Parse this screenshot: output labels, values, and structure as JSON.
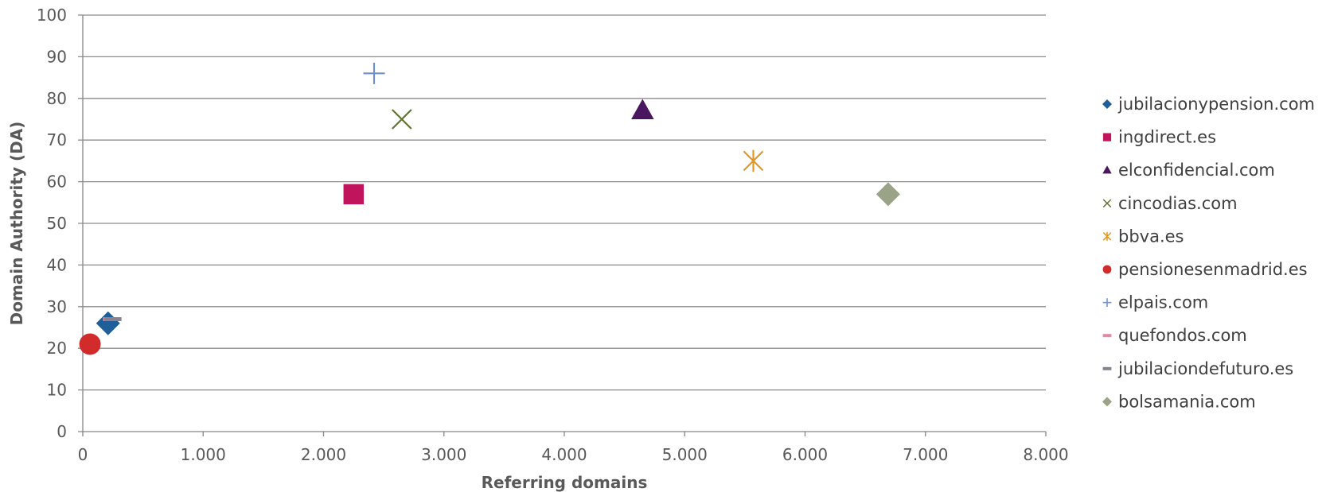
{
  "chart_data": {
    "type": "scatter",
    "xlabel": "Referring domains",
    "ylabel": "Domain Authority (DA)",
    "xlim": [
      0,
      8000
    ],
    "ylim": [
      0,
      100
    ],
    "x_ticks": [
      "0",
      "1.000",
      "2.000",
      "3.000",
      "4.000",
      "5.000",
      "6.000",
      "7.000",
      "8.000"
    ],
    "y_ticks": [
      "0",
      "10",
      "20",
      "30",
      "40",
      "50",
      "60",
      "70",
      "80",
      "90",
      "100"
    ],
    "grid": "horizontal",
    "legend_position": "right",
    "series": [
      {
        "name": "jubilacionypension.com",
        "x": 210,
        "y": 26,
        "marker": "diamond",
        "color": "#1F5F99"
      },
      {
        "name": "ingdirect.es",
        "x": 2250,
        "y": 57,
        "marker": "square",
        "color": "#C0145C"
      },
      {
        "name": "elconfidencial.com",
        "x": 4650,
        "y": 77,
        "marker": "triangle",
        "color": "#4A1660"
      },
      {
        "name": "cincodias.com",
        "x": 2650,
        "y": 75,
        "marker": "x",
        "color": "#5F7530"
      },
      {
        "name": "bbva.es",
        "x": 5570,
        "y": 65,
        "marker": "star",
        "color": "#E6961E"
      },
      {
        "name": "pensionesenmadrid.es",
        "x": 60,
        "y": 21,
        "marker": "circle",
        "color": "#D22B2B"
      },
      {
        "name": "elpais.com",
        "x": 2420,
        "y": 86,
        "marker": "plus",
        "color": "#6F8FC8"
      },
      {
        "name": "quefondos.com",
        "x": 240,
        "y": 27,
        "marker": "dash",
        "color": "#E08AA8"
      },
      {
        "name": "jubilaciondefuturo.es",
        "x": 250,
        "y": 27,
        "marker": "dash",
        "color": "#8A8090"
      },
      {
        "name": "bolsamania.com",
        "x": 6690,
        "y": 57,
        "marker": "diamond",
        "color": "#9BA387"
      }
    ]
  }
}
